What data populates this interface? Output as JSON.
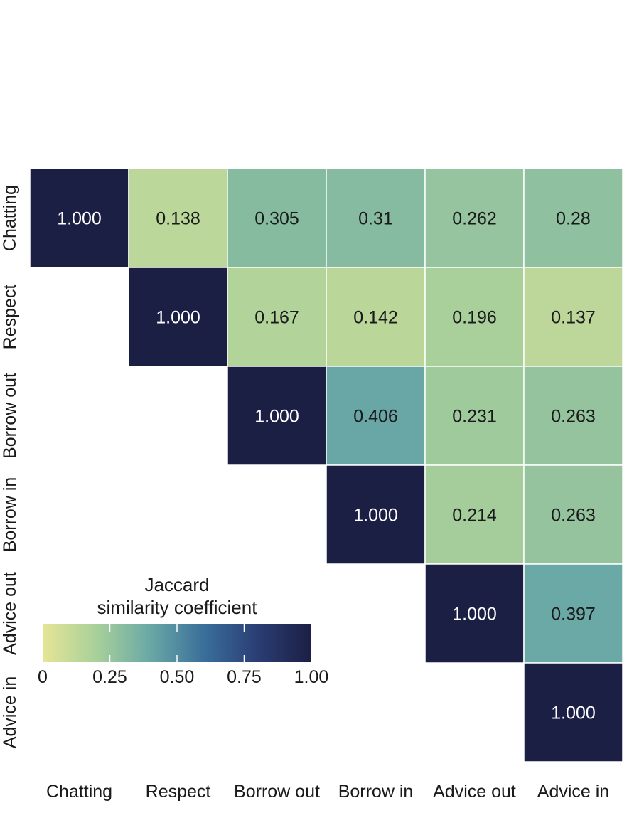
{
  "chart_data": {
    "type": "heatmap",
    "title": "",
    "xlabel": "",
    "ylabel": "",
    "categories": [
      "Chatting",
      "Respect",
      "Borrow out",
      "Borrow in",
      "Advice out",
      "Advice in"
    ],
    "matrix": [
      [
        "1.000",
        "0.138",
        "0.305",
        "0.31",
        "0.262",
        "0.28"
      ],
      [
        null,
        "1.000",
        "0.167",
        "0.142",
        "0.196",
        "0.137"
      ],
      [
        null,
        null,
        "1.000",
        "0.406",
        "0.231",
        "0.263"
      ],
      [
        null,
        null,
        null,
        "1.000",
        "0.214",
        "0.263"
      ],
      [
        null,
        null,
        null,
        null,
        "1.000",
        "0.397"
      ],
      [
        null,
        null,
        null,
        null,
        null,
        "1.000"
      ]
    ],
    "triangle": "upper",
    "colorbar": {
      "title_line1": "Jaccard",
      "title_line2": "similarity coefficient",
      "range": [
        0,
        1
      ],
      "ticks": [
        "0",
        "0.25",
        "0.50",
        "0.75",
        "1.00"
      ],
      "colors": [
        "#e6e596",
        "#a8d09a",
        "#6aa8a6",
        "#3a6f9a",
        "#2a3d74",
        "#1c1f44"
      ]
    },
    "grid": false,
    "legend_position": "bottom-left"
  }
}
